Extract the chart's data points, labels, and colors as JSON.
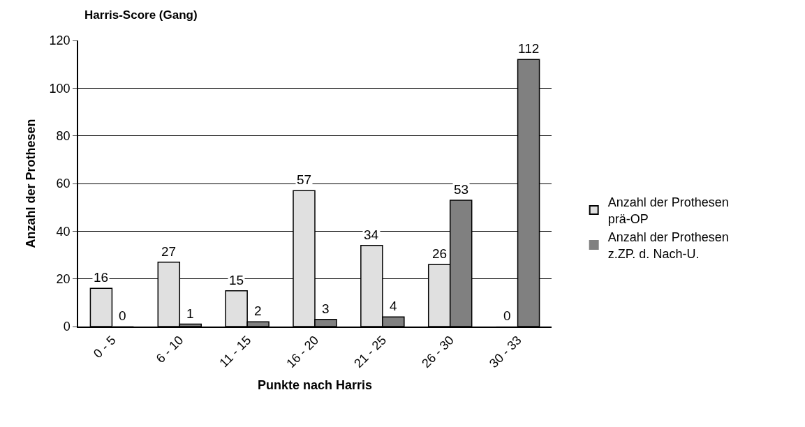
{
  "chart_data": {
    "type": "bar",
    "title": "Harris-Score (Gang)",
    "xlabel": "Punkte nach Harris",
    "ylabel": "Anzahl der Prothesen",
    "categories": [
      "0 - 5",
      "6 - 10",
      "11 - 15",
      "16 - 20",
      "21 - 25",
      "26 - 30",
      "30 - 33"
    ],
    "series": [
      {
        "name": "Anzahl der Prothesen prä-OP",
        "color": "#e0e0e0",
        "values": [
          16,
          27,
          15,
          57,
          34,
          26,
          0
        ]
      },
      {
        "name": "Anzahl der Prothesen z.ZP. d. Nach-U.",
        "color": "#808080",
        "values": [
          0,
          1,
          2,
          3,
          4,
          53,
          112
        ]
      }
    ],
    "ylim": [
      0,
      120
    ],
    "yticks": [
      0,
      20,
      40,
      60,
      80,
      100,
      120
    ],
    "grid": "y",
    "legend": "right",
    "data_labels": true
  }
}
